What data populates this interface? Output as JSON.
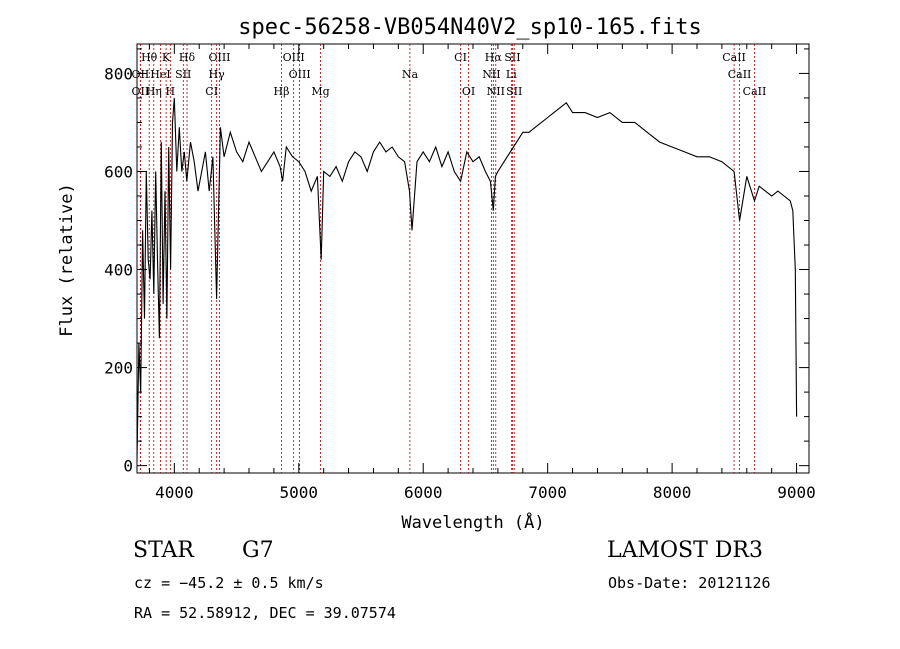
{
  "chart_data": {
    "type": "line",
    "title": "spec-56258-VB054N40V2_sp10-165.fits",
    "xlabel": "Wavelength (Å)",
    "ylabel": "Flux (relative)",
    "xlim": [
      3700,
      9100
    ],
    "ylim": [
      -15,
      860
    ],
    "xticks": [
      4000,
      5000,
      6000,
      7000,
      8000,
      9000
    ],
    "yticks": [
      0,
      200,
      400,
      600,
      800
    ],
    "series": [
      {
        "name": "flux",
        "x": [
          3700,
          3715,
          3730,
          3745,
          3760,
          3775,
          3790,
          3805,
          3820,
          3835,
          3850,
          3865,
          3880,
          3895,
          3910,
          3925,
          3940,
          3955,
          3970,
          3985,
          4000,
          4020,
          4040,
          4060,
          4080,
          4100,
          4130,
          4160,
          4190,
          4220,
          4250,
          4280,
          4310,
          4340,
          4370,
          4400,
          4450,
          4500,
          4550,
          4600,
          4650,
          4700,
          4750,
          4800,
          4850,
          4870,
          4900,
          4950,
          5000,
          5050,
          5100,
          5150,
          5180,
          5200,
          5250,
          5300,
          5350,
          5400,
          5450,
          5500,
          5550,
          5600,
          5650,
          5700,
          5750,
          5800,
          5850,
          5890,
          5910,
          5950,
          6000,
          6050,
          6100,
          6150,
          6200,
          6250,
          6300,
          6350,
          6400,
          6450,
          6500,
          6540,
          6563,
          6580,
          6600,
          6650,
          6700,
          6750,
          6800,
          6850,
          6900,
          6950,
          7000,
          7050,
          7100,
          7150,
          7200,
          7300,
          7400,
          7500,
          7600,
          7700,
          7800,
          7900,
          8000,
          8100,
          8200,
          8300,
          8400,
          8498,
          8542,
          8600,
          8662,
          8700,
          8750,
          8800,
          8850,
          8900,
          8950,
          8970,
          8990,
          9000
        ],
        "y": [
          10,
          250,
          150,
          480,
          300,
          600,
          420,
          380,
          520,
          350,
          600,
          420,
          260,
          660,
          330,
          560,
          300,
          650,
          400,
          700,
          750,
          600,
          690,
          600,
          640,
          580,
          660,
          620,
          560,
          600,
          640,
          560,
          630,
          340,
          690,
          630,
          680,
          640,
          620,
          660,
          630,
          600,
          620,
          640,
          610,
          580,
          650,
          630,
          620,
          600,
          560,
          590,
          420,
          600,
          590,
          610,
          580,
          620,
          640,
          630,
          600,
          640,
          660,
          640,
          650,
          630,
          620,
          560,
          480,
          620,
          640,
          620,
          650,
          610,
          640,
          600,
          580,
          640,
          620,
          630,
          600,
          580,
          520,
          590,
          600,
          620,
          640,
          660,
          680,
          680,
          690,
          700,
          710,
          720,
          730,
          740,
          720,
          720,
          710,
          720,
          700,
          700,
          680,
          660,
          650,
          640,
          630,
          630,
          620,
          600,
          500,
          590,
          540,
          570,
          560,
          550,
          560,
          550,
          540,
          520,
          400,
          100
        ]
      }
    ],
    "spectral_lines": [
      {
        "name": "Hθ",
        "wavelength": 3798,
        "row": 1
      },
      {
        "name": "K",
        "wavelength": 3934,
        "row": 1
      },
      {
        "name": "Hδ",
        "wavelength": 4102,
        "row": 1
      },
      {
        "name": "OIII",
        "wavelength": 4363,
        "row": 1
      },
      {
        "name": "OIII",
        "wavelength": 4959,
        "row": 1
      },
      {
        "name": "CI",
        "wavelength": 6300,
        "row": 1
      },
      {
        "name": "Hα",
        "wavelength": 6563,
        "row": 1
      },
      {
        "name": "SII",
        "wavelength": 6717,
        "row": 1
      },
      {
        "name": "CaII",
        "wavelength": 8498,
        "row": 1
      },
      {
        "name": "OII",
        "wavelength": 3727,
        "row": 2
      },
      {
        "name": "HeI",
        "wavelength": 3889,
        "row": 2
      },
      {
        "name": "SII",
        "wavelength": 4072,
        "row": 2
      },
      {
        "name": "Hγ",
        "wavelength": 4340,
        "row": 2
      },
      {
        "name": "OIII",
        "wavelength": 5007,
        "row": 2
      },
      {
        "name": "Na",
        "wavelength": 5893,
        "row": 2
      },
      {
        "name": "NII",
        "wavelength": 6548,
        "row": 2
      },
      {
        "name": "Li",
        "wavelength": 6708,
        "row": 2
      },
      {
        "name": "CaII",
        "wavelength": 8542,
        "row": 2
      },
      {
        "name": "OII",
        "wavelength": 3727,
        "row": 3
      },
      {
        "name": "Hη",
        "wavelength": 3835,
        "row": 3
      },
      {
        "name": "H",
        "wavelength": 3968,
        "row": 3
      },
      {
        "name": "CI",
        "wavelength": 4300,
        "row": 3
      },
      {
        "name": "Hβ",
        "wavelength": 4861,
        "row": 3
      },
      {
        "name": "Mg",
        "wavelength": 5175,
        "row": 3
      },
      {
        "name": "OI",
        "wavelength": 6364,
        "row": 3
      },
      {
        "name": "NII",
        "wavelength": 6583,
        "row": 3
      },
      {
        "name": "SII",
        "wavelength": 6731,
        "row": 3
      },
      {
        "name": "CaII",
        "wavelength": 8662,
        "row": 3
      }
    ]
  },
  "info": {
    "object_class": "STAR",
    "subclass": "G7",
    "survey": "LAMOST DR3",
    "cz": "cz = −45.2 ± 0.5 km/s",
    "obs_date": "Obs-Date: 20121126",
    "coords": "RA =  52.58912, DEC =  39.07574"
  }
}
